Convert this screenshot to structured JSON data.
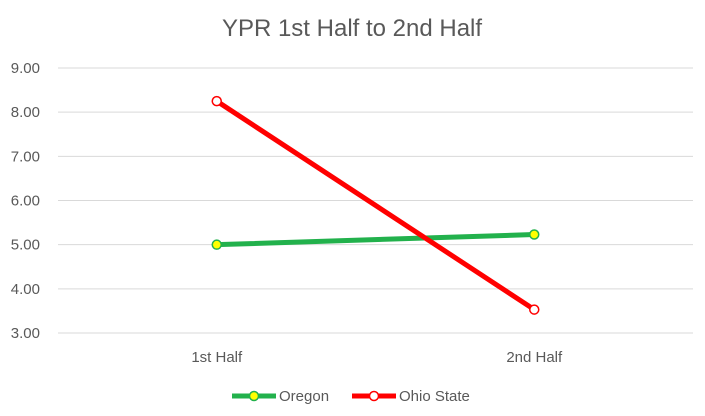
{
  "chart_data": {
    "type": "line",
    "title": "YPR 1st Half to 2nd Half",
    "categories": [
      "1st Half",
      "2nd Half"
    ],
    "ylim": [
      3.0,
      9.0
    ],
    "yticks": [
      "3.00",
      "4.00",
      "5.00",
      "6.00",
      "7.00",
      "8.00",
      "9.00"
    ],
    "grid": true,
    "legend_position": "bottom",
    "series": [
      {
        "name": "Oregon",
        "values": [
          5.0,
          5.23
        ],
        "color": "#22b14c",
        "marker_fill": "#ffff00",
        "marker_stroke": "#22b14c"
      },
      {
        "name": "Ohio State",
        "values": [
          8.25,
          3.53
        ],
        "color": "#ff0000",
        "marker_fill": "#ffffff",
        "marker_stroke": "#ff0000"
      }
    ]
  }
}
